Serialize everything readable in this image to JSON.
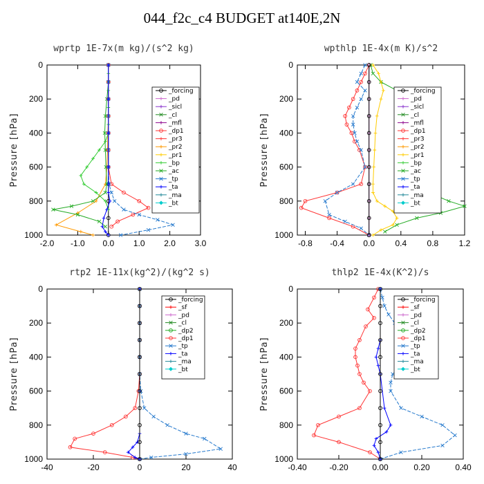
{
  "title": "044_f2c_c4  BUDGET at140E,2N",
  "colors": {
    "forcing": "#000000",
    "sf": "#ff0000",
    "pd": "#cc66cc",
    "sicl": "#8833cc",
    "cl": "#228b22",
    "mfl": "#8b008b",
    "dp1": "#ff3333",
    "dp2": "#22aa22",
    "pr3": "#ff3333",
    "pr2": "#ff9900",
    "pr1": "#ffcc00",
    "bp": "#33cc33",
    "ac": "#22aa22",
    "tp": "#2277cc",
    "ta": "#0000ff",
    "ma": "#228899",
    "bt": "#00cccc"
  },
  "chart_data": [
    {
      "type": "line",
      "title": "wprtp  1E-7x(m kg)/(s^2 kg)",
      "ylabel": "Pressure [hPa]",
      "xlim": [
        -2.0,
        3.0
      ],
      "xticks": [
        "-2.0",
        "-1.0",
        "0.0",
        "1.0",
        "2.0",
        "3.0"
      ],
      "xtick_values": [
        -2,
        -1,
        0,
        1,
        2,
        3
      ],
      "ylim": [
        0,
        1000
      ],
      "yticks": [
        "0",
        "200",
        "400",
        "600",
        "800",
        "1000"
      ],
      "ytick_values": [
        0,
        200,
        400,
        600,
        800,
        1000
      ],
      "legend": [
        "_forcing",
        "_pd",
        "_sicl",
        "_cl",
        "_mfl",
        "_dp1",
        "_pr3",
        "_pr2",
        "_pr1",
        "_bp",
        "_ac",
        "_tp",
        "_ta",
        "_ma",
        "_bt"
      ],
      "legend_keys": [
        "forcing",
        "pd",
        "sicl",
        "cl",
        "mfl",
        "dp1",
        "pr3",
        "pr2",
        "pr1",
        "bp",
        "ac",
        "tp",
        "ta",
        "ma",
        "bt"
      ],
      "series": [
        {
          "key": "forcing",
          "x": [
            0,
            0,
            0,
            0,
            0,
            0,
            0,
            0,
            0,
            0,
            0
          ],
          "y": [
            0,
            100,
            200,
            300,
            400,
            500,
            600,
            700,
            800,
            900,
            1000
          ]
        },
        {
          "key": "pr2",
          "x": [
            0,
            0,
            0,
            0,
            -0.02,
            -0.03,
            -0.05,
            -0.1,
            -0.4,
            -1.0,
            -1.7,
            -0.9,
            -0.5
          ],
          "y": [
            0,
            100,
            200,
            300,
            400,
            500,
            600,
            700,
            800,
            870,
            940,
            980,
            1000
          ]
        },
        {
          "key": "bp",
          "x": [
            0,
            0,
            0,
            0,
            0,
            0,
            0,
            0,
            0,
            -0.1,
            -0.3,
            -0.5,
            -0.7,
            -0.9,
            -0.8,
            -0.4,
            -0.1,
            0
          ],
          "y": [
            0,
            50,
            100,
            150,
            200,
            250,
            300,
            350,
            400,
            450,
            500,
            550,
            600,
            650,
            700,
            750,
            800,
            850
          ]
        },
        {
          "key": "ac",
          "x": [
            0,
            0,
            -0.05,
            -0.1,
            -0.12,
            -0.1,
            -0.08,
            -0.05,
            -0.1,
            -0.5,
            -1.2,
            -1.8,
            -1.0,
            -0.3,
            -0.1
          ],
          "y": [
            0,
            100,
            200,
            300,
            400,
            500,
            600,
            700,
            750,
            800,
            830,
            850,
            880,
            920,
            950
          ]
        },
        {
          "key": "dp1",
          "x": [
            0,
            0,
            0,
            0,
            0,
            0,
            0,
            0.1,
            0.5,
            1.0,
            1.3,
            0.8,
            0.3,
            0.1
          ],
          "y": [
            0,
            100,
            200,
            300,
            400,
            500,
            600,
            700,
            750,
            800,
            840,
            880,
            920,
            950
          ]
        },
        {
          "key": "tp",
          "x": [
            0,
            0,
            0,
            0,
            0,
            0,
            0,
            0.02,
            0.1,
            0.2,
            0.5,
            1.0,
            1.6,
            2.1,
            1.3,
            0.4
          ],
          "y": [
            0,
            100,
            200,
            300,
            400,
            500,
            600,
            700,
            750,
            800,
            850,
            880,
            910,
            940,
            970,
            1000
          ]
        },
        {
          "key": "ta",
          "x": [
            0,
            0,
            0,
            0,
            0,
            0,
            0.05,
            -0.05,
            -0.15,
            -0.2,
            -0.1,
            0
          ],
          "y": [
            0,
            200,
            400,
            600,
            700,
            750,
            800,
            850,
            900,
            950,
            980,
            1000
          ]
        }
      ]
    },
    {
      "type": "line",
      "title": "wpthlp  1E-4x(m K)/s^2",
      "ylabel": "Pressure [hPa]",
      "xlim": [
        -0.9,
        1.2
      ],
      "xticks": [
        "-0.8",
        "-0.4",
        "0.0",
        "0.4",
        "0.8",
        "1.2"
      ],
      "xtick_values": [
        -0.8,
        -0.4,
        0,
        0.4,
        0.8,
        1.2
      ],
      "ylim": [
        0,
        1000
      ],
      "yticks": [
        "0",
        "200",
        "400",
        "600",
        "800",
        "1000"
      ],
      "ytick_values": [
        0,
        200,
        400,
        600,
        800,
        1000
      ],
      "legend": [
        "_forcing",
        "_pd",
        "_sicl",
        "_cl",
        "_mfl",
        "_dp1",
        "_pr3",
        "_pr2",
        "_pr1",
        "_bp",
        "_ac",
        "_tp",
        "_ta",
        "_ma",
        "_bt"
      ],
      "legend_keys": [
        "forcing",
        "pd",
        "sicl",
        "cl",
        "mfl",
        "dp1",
        "pr3",
        "pr2",
        "pr1",
        "bp",
        "ac",
        "tp",
        "ta",
        "ma",
        "bt"
      ],
      "series": [
        {
          "key": "ac",
          "x": [
            0.02,
            0.05,
            0.15,
            0.35,
            0.45,
            0.45,
            0.45,
            0.45,
            0.42,
            0.4,
            0.42,
            0.55,
            0.75,
            1.0,
            1.2,
            0.9,
            0.6,
            0.35,
            0.2
          ],
          "y": [
            0,
            50,
            100,
            150,
            200,
            250,
            300,
            400,
            500,
            600,
            650,
            700,
            750,
            800,
            830,
            870,
            900,
            940,
            980
          ]
        },
        {
          "key": "pr1",
          "x": [
            0.05,
            0.12,
            0.15,
            0.18,
            0.15,
            0.1,
            0.08,
            0.07,
            0.06,
            0.05,
            0.05,
            0.1,
            0.2,
            0.3,
            0.35,
            0.3,
            0.15,
            0.05
          ],
          "y": [
            0,
            50,
            100,
            150,
            200,
            300,
            400,
            500,
            600,
            700,
            750,
            800,
            830,
            860,
            900,
            940,
            970,
            1000
          ]
        },
        {
          "key": "dp1",
          "x": [
            0,
            -0.05,
            -0.1,
            -0.15,
            -0.2,
            -0.25,
            -0.3,
            -0.28,
            -0.22,
            -0.18,
            -0.12,
            -0.05,
            -0.1,
            -0.4,
            -0.8,
            -0.85,
            -0.5,
            -0.2,
            0
          ],
          "y": [
            0,
            50,
            100,
            150,
            200,
            250,
            300,
            350,
            400,
            450,
            500,
            600,
            700,
            750,
            800,
            840,
            900,
            950,
            1000
          ]
        },
        {
          "key": "tp",
          "x": [
            -0.05,
            -0.1,
            -0.15,
            -0.05,
            -0.1,
            -0.15,
            -0.2,
            -0.2,
            -0.18,
            -0.15,
            -0.1,
            -0.05,
            -0.2,
            -0.4,
            -0.55,
            -0.5,
            -0.3,
            -0.1,
            0
          ],
          "y": [
            0,
            50,
            100,
            150,
            200,
            250,
            300,
            350,
            400,
            450,
            500,
            600,
            700,
            750,
            800,
            880,
            920,
            960,
            1000
          ]
        },
        {
          "key": "pd",
          "x": [
            0,
            0,
            0,
            0,
            0,
            0,
            0,
            0,
            0,
            0,
            0
          ],
          "y": [
            0,
            100,
            200,
            300,
            400,
            500,
            600,
            700,
            800,
            900,
            1000
          ]
        },
        {
          "key": "forcing",
          "x": [
            0,
            0,
            0,
            0,
            0,
            0,
            0,
            0,
            0,
            0,
            0
          ],
          "y": [
            0,
            100,
            200,
            300,
            400,
            500,
            600,
            700,
            800,
            900,
            1000
          ]
        }
      ]
    },
    {
      "type": "line",
      "title": "rtp2  1E-11x(kg^2)/(kg^2 s)",
      "ylabel": "Pressure [hPa]",
      "xlim": [
        -40,
        40
      ],
      "xticks": [
        "-40",
        "-20",
        "0",
        "20",
        "40"
      ],
      "xtick_values": [
        -40,
        -20,
        0,
        20,
        40
      ],
      "ylim": [
        0,
        1000
      ],
      "yticks": [
        "0",
        "200",
        "400",
        "600",
        "800",
        "1000"
      ],
      "ytick_values": [
        0,
        200,
        400,
        600,
        800,
        1000
      ],
      "legend": [
        "_forcing",
        "_sf",
        "_pd",
        "_cl",
        "_dp2",
        "_dp1",
        "_tp",
        "_ta",
        "_ma",
        "_bt"
      ],
      "legend_keys": [
        "forcing",
        "sf",
        "pd",
        "cl",
        "dp2",
        "dp1",
        "tp",
        "ta",
        "ma",
        "bt"
      ],
      "series": [
        {
          "key": "dp1",
          "x": [
            0,
            0,
            0,
            0,
            0,
            0,
            -0.5,
            -2,
            -6,
            -12,
            -20,
            -28,
            -30,
            -15,
            -3,
            0
          ],
          "y": [
            0,
            100,
            200,
            300,
            400,
            500,
            600,
            700,
            750,
            800,
            850,
            880,
            930,
            960,
            990,
            1000
          ]
        },
        {
          "key": "tp",
          "x": [
            0,
            0,
            0,
            0,
            0,
            0,
            0.5,
            2,
            6,
            12,
            20,
            28,
            35,
            20,
            5,
            0
          ],
          "y": [
            0,
            100,
            200,
            300,
            400,
            500,
            600,
            700,
            750,
            800,
            850,
            880,
            940,
            970,
            990,
            1000
          ]
        },
        {
          "key": "ta",
          "x": [
            0,
            0,
            0,
            -1,
            -3,
            -5,
            -2,
            0
          ],
          "y": [
            0,
            600,
            850,
            900,
            930,
            960,
            990,
            1000
          ]
        },
        {
          "key": "forcing",
          "x": [
            0,
            0,
            0,
            0,
            0,
            0,
            0,
            0,
            0,
            0,
            0
          ],
          "y": [
            0,
            100,
            200,
            300,
            400,
            500,
            600,
            700,
            800,
            900,
            1000
          ]
        }
      ]
    },
    {
      "type": "line",
      "title": "thlp2  1E-4x(K^2)/s",
      "ylabel": "Pressure [hPa]",
      "xlim": [
        -0.4,
        0.4
      ],
      "xticks": [
        "-0.40",
        "-0.20",
        "0.00",
        "0.20",
        "0.40"
      ],
      "xtick_values": [
        -0.4,
        -0.2,
        0,
        0.2,
        0.4
      ],
      "ylim": [
        0,
        1000
      ],
      "yticks": [
        "0",
        "200",
        "400",
        "600",
        "800",
        "1000"
      ],
      "ytick_values": [
        0,
        200,
        400,
        600,
        800,
        1000
      ],
      "legend": [
        "_forcing",
        "_sf",
        "_pd",
        "_cl",
        "_dp2",
        "_dp1",
        "_tp",
        "_ta",
        "_ma",
        "_bt"
      ],
      "legend_keys": [
        "forcing",
        "sf",
        "pd",
        "cl",
        "dp2",
        "dp1",
        "tp",
        "ta",
        "ma",
        "bt"
      ],
      "series": [
        {
          "key": "dp1",
          "x": [
            -0.01,
            -0.03,
            -0.06,
            -0.03,
            -0.07,
            -0.1,
            -0.12,
            -0.12,
            -0.11,
            -0.1,
            -0.08,
            -0.05,
            -0.1,
            -0.2,
            -0.3,
            -0.32,
            -0.2,
            -0.05,
            0
          ],
          "y": [
            0,
            50,
            120,
            170,
            220,
            300,
            350,
            400,
            450,
            500,
            550,
            600,
            700,
            750,
            800,
            860,
            900,
            960,
            1000
          ]
        },
        {
          "key": "tp",
          "x": [
            0,
            0.01,
            0.02,
            0.04,
            0.07,
            0.1,
            0.12,
            0.13,
            0.1,
            0.06,
            0.05,
            0.05,
            0.1,
            0.2,
            0.3,
            0.36,
            0.3,
            0.1,
            0
          ],
          "y": [
            0,
            50,
            100,
            150,
            200,
            300,
            350,
            400,
            450,
            500,
            550,
            600,
            700,
            750,
            800,
            860,
            920,
            960,
            1000
          ]
        },
        {
          "key": "ta",
          "x": [
            0,
            0,
            -0.01,
            -0.02,
            -0.01,
            0,
            0.02,
            0.05,
            0.03,
            -0.02,
            -0.03,
            -0.01,
            0
          ],
          "y": [
            0,
            300,
            350,
            400,
            450,
            500,
            700,
            800,
            840,
            880,
            920,
            960,
            1000
          ]
        },
        {
          "key": "forcing",
          "x": [
            0,
            0,
            0,
            0,
            0,
            0,
            0,
            0,
            0,
            0,
            0
          ],
          "y": [
            0,
            100,
            200,
            300,
            400,
            500,
            600,
            700,
            800,
            900,
            1000
          ]
        }
      ]
    }
  ]
}
